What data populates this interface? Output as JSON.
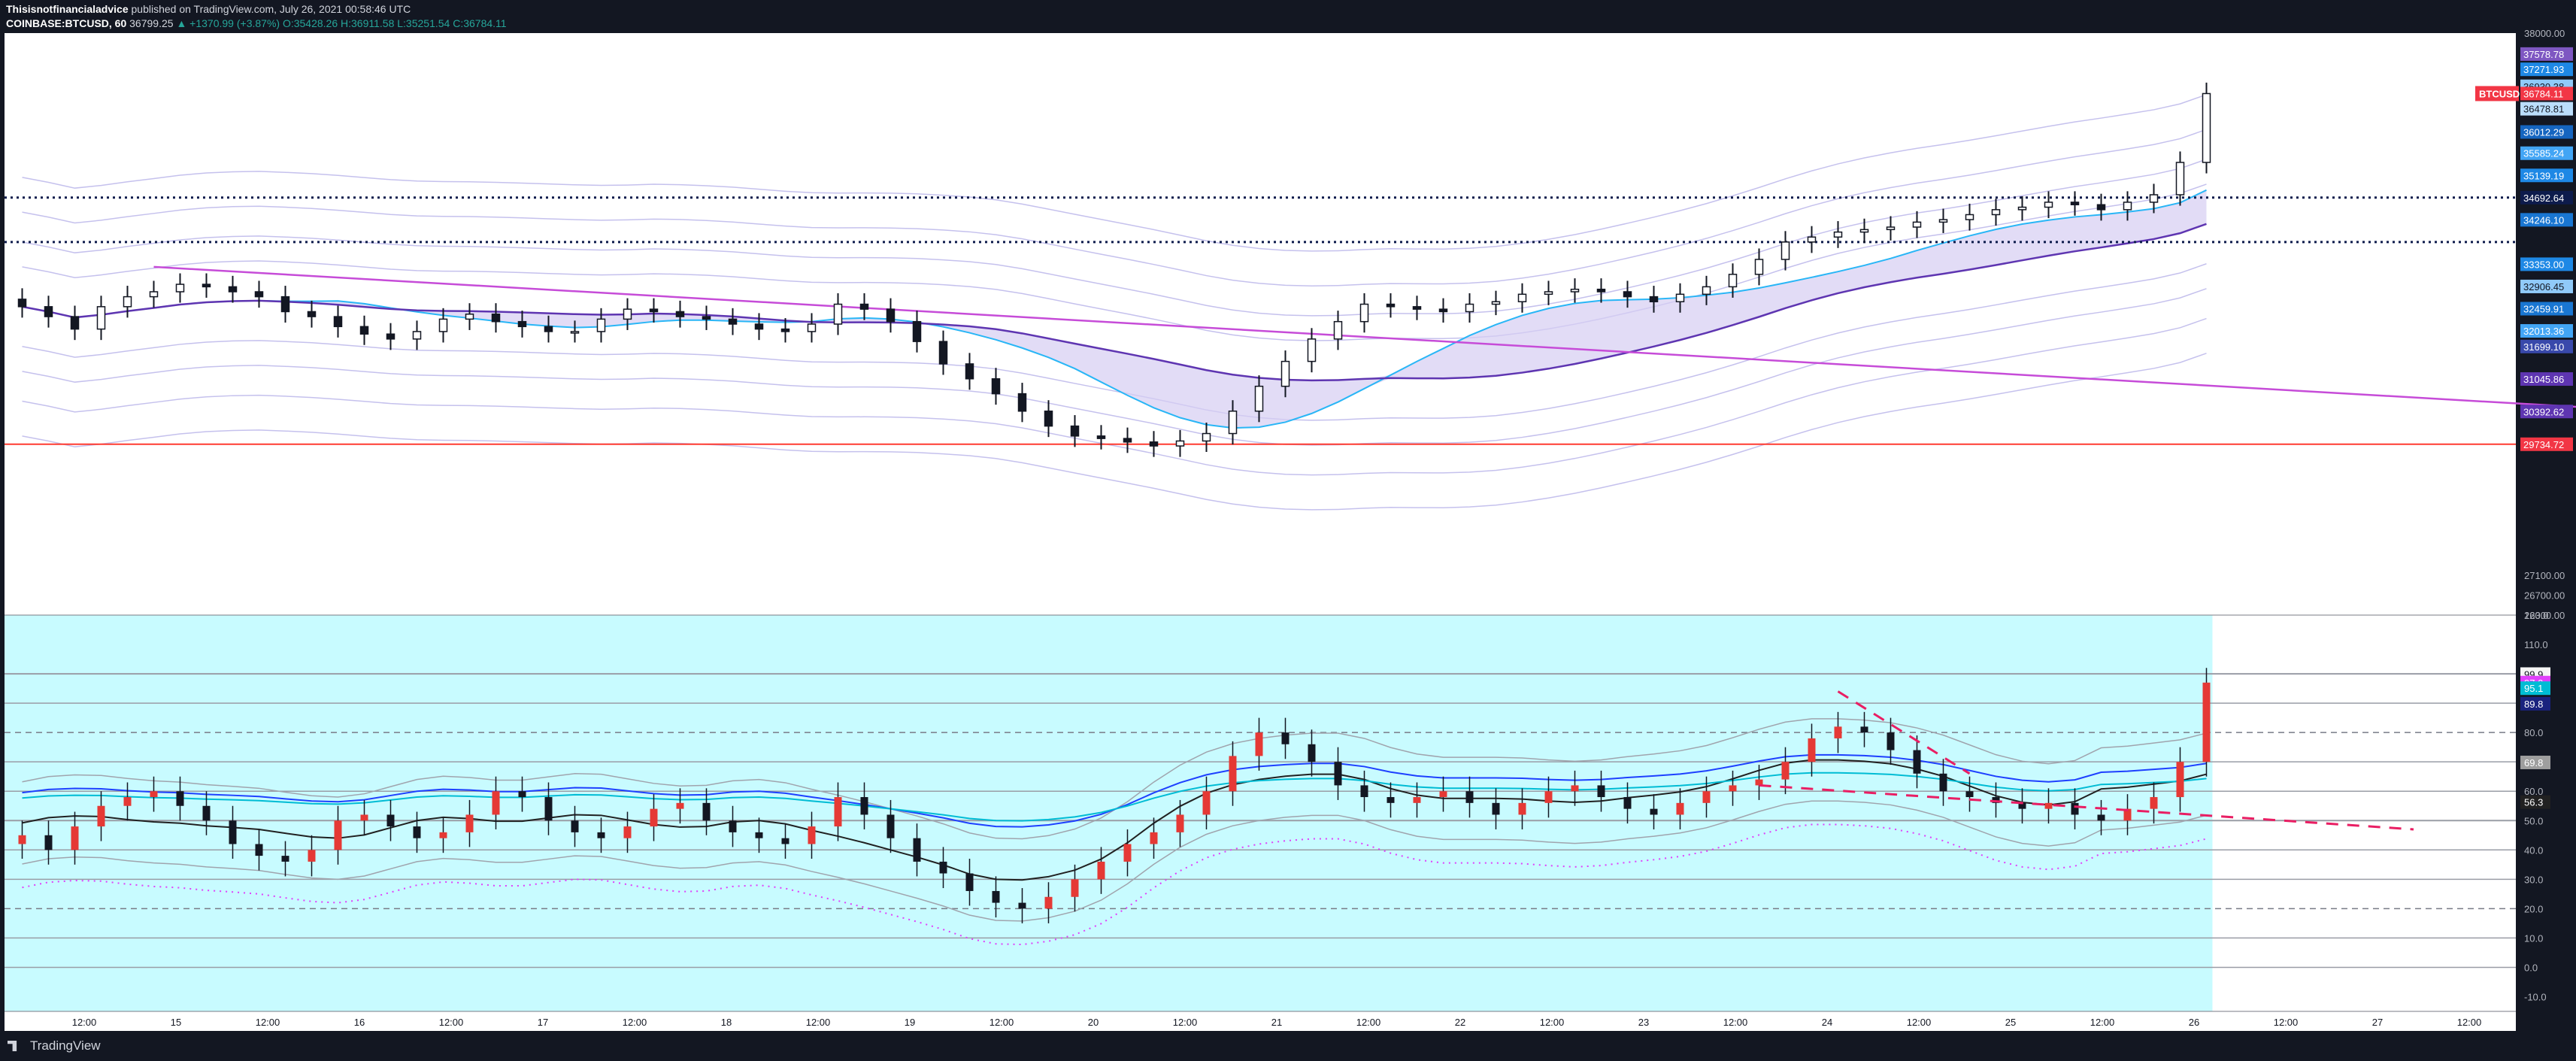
{
  "header": {
    "author": "Thisisnotfinancialadvice",
    "published": "published on TradingView.com, July 26, 2021 00:58:46 UTC",
    "symbol_line": "COINBASE:BTCUSD, 60",
    "price": "36799.25",
    "change": "▲ +1370.99 (+3.87%)",
    "ohlc": "O:35428.26 H:36911.58 L:35251.54 C:36784.11"
  },
  "footer": {
    "brand": "TradingView",
    "logo_icon": "tradingview-logo-icon"
  },
  "colors": {
    "background": "#131722",
    "rsi_panel": "#c8fbff",
    "up": "#26a69a",
    "down": "#b71c1c",
    "support": "#ff3b30",
    "trend": "#c64cd8",
    "dashed": "#e91e63"
  },
  "chart_data": [
    {
      "type": "candlestick",
      "symbol": "BTCUSD",
      "ylim": [
        26300,
        38000
      ],
      "y_ticks": [
        38000,
        27100,
        26700,
        26300
      ],
      "price_tags": [
        {
          "value": 37578.78,
          "label": "37578.78",
          "color": "#7e57c2"
        },
        {
          "value": 37271.93,
          "label": "37271.93",
          "color": "#1e88e5"
        },
        {
          "value": 36930.38,
          "label": "36930.38",
          "color": "#90caf9"
        },
        {
          "value": 36784.11,
          "label": "36784.11",
          "color": "#f23645"
        },
        {
          "value": 36478.81,
          "label": "36478.81",
          "color": "#bbdefb"
        },
        {
          "value": 36012.29,
          "label": "36012.29",
          "color": "#1565c0"
        },
        {
          "value": 35585.24,
          "label": "35585.24",
          "color": "#42a5f5"
        },
        {
          "value": 35139.19,
          "label": "35139.19",
          "color": "#1e88e5"
        },
        {
          "value": 34692.64,
          "label": "34692.64",
          "color": "#0d1b4c"
        },
        {
          "value": 34246.1,
          "label": "34246.10",
          "color": "#1976d2"
        },
        {
          "value": 33353.0,
          "label": "33353.00",
          "color": "#1e88e5"
        },
        {
          "value": 32906.45,
          "label": "32906.45",
          "color": "#90caf9"
        },
        {
          "value": 32459.91,
          "label": "32459.91",
          "color": "#1976d2"
        },
        {
          "value": 32013.36,
          "label": "32013.36",
          "color": "#42a5f5"
        },
        {
          "value": 31699.1,
          "label": "31699.10",
          "color": "#3949ab"
        },
        {
          "value": 31045.86,
          "label": "31045.86",
          "color": "#5e35b1"
        },
        {
          "value": 30392.62,
          "label": "30392.62",
          "color": "#5e35b1"
        },
        {
          "value": 29734.72,
          "label": "29734.72",
          "color": "#f23645"
        }
      ],
      "horizontal_levels": [
        {
          "value": 34692.64,
          "style": "dotted"
        },
        {
          "value": 33800,
          "style": "dotted"
        },
        {
          "value": 29734.72,
          "style": "solid"
        }
      ],
      "trendline": {
        "x": [
          0.5,
          19.5
        ],
        "y": [
          33300,
          26300
        ]
      },
      "closes": [
        32500,
        32300,
        32050,
        32500,
        32700,
        32800,
        32950,
        32900,
        32800,
        32700,
        32400,
        32300,
        32100,
        31950,
        31850,
        32000,
        32250,
        32350,
        32200,
        32100,
        32000,
        32000,
        32250,
        32450,
        32400,
        32300,
        32250,
        32150,
        32050,
        32000,
        32150,
        32550,
        32450,
        32200,
        31800,
        31350,
        31050,
        30750,
        30400,
        30100,
        29900,
        29850,
        29780,
        29700,
        29800,
        29950,
        30400,
        30900,
        31400,
        31850,
        32200,
        32550,
        32500,
        32450,
        32400,
        32550,
        32600,
        32750,
        32800,
        32850,
        32800,
        32700,
        32600,
        32750,
        32900,
        33150,
        33450,
        33800,
        33900,
        34000,
        34050,
        34100,
        34200,
        34250,
        34350,
        34450,
        34500,
        34600,
        34550,
        34450,
        34600,
        34750,
        35400,
        36784.11
      ]
    },
    {
      "type": "line",
      "series": [
        {
          "values": [
            45,
            40,
            48,
            55,
            58,
            60,
            55,
            50,
            42,
            38,
            36,
            40,
            50,
            52,
            48,
            44,
            46,
            52,
            60,
            58,
            50,
            46,
            44,
            48,
            54,
            56,
            50,
            46,
            44,
            42,
            48,
            58,
            52,
            44,
            36,
            32,
            26,
            22,
            20,
            24,
            30,
            36,
            42,
            46,
            52,
            60,
            72,
            80,
            76,
            70,
            62,
            58,
            56,
            58,
            60,
            56,
            52,
            56,
            60,
            62,
            58,
            54,
            52,
            56,
            60,
            62,
            64,
            70,
            78,
            82,
            80,
            74,
            66,
            60,
            58,
            56,
            54,
            56,
            52,
            50,
            54,
            58,
            70,
            97
          ]
        }
      ],
      "ylim": [
        -15,
        120
      ],
      "y_ticks": [
        120,
        110,
        80,
        70,
        60,
        50,
        40,
        30,
        20,
        10,
        0,
        -10
      ],
      "y_tick_labels": [
        "120.0",
        "110.0",
        "80.0",
        "70.0",
        "60.0",
        "50.0",
        "40.0",
        "30.0",
        "20.0",
        "10.0",
        "0.0",
        "-10.0"
      ],
      "value_tags": [
        {
          "value": 99.9,
          "label": "99.9",
          "color": "#f5f5f5"
        },
        {
          "value": 97.0,
          "label": "97.0",
          "color": "#e040fb"
        },
        {
          "value": 95.1,
          "label": "95.1",
          "color": "#00bcd4"
        },
        {
          "value": 89.8,
          "label": "89.8",
          "color": "#1a237e"
        },
        {
          "value": 69.8,
          "label": "69.8",
          "color": "#9e9e9e"
        },
        {
          "value": 56.3,
          "label": "56.3",
          "color": "#212121"
        }
      ],
      "h_levels": [
        100,
        90,
        80,
        70,
        60,
        50,
        40,
        30,
        20,
        10,
        0
      ]
    }
  ],
  "x_axis": {
    "labels": [
      "12:00",
      "15",
      "12:00",
      "16",
      "12:00",
      "17",
      "12:00",
      "18",
      "12:00",
      "19",
      "12:00",
      "20",
      "12:00",
      "21",
      "12:00",
      "22",
      "12:00",
      "23",
      "12:00",
      "24",
      "12:00",
      "25",
      "12:00",
      "26",
      "12:00",
      "27",
      "12:00"
    ]
  }
}
